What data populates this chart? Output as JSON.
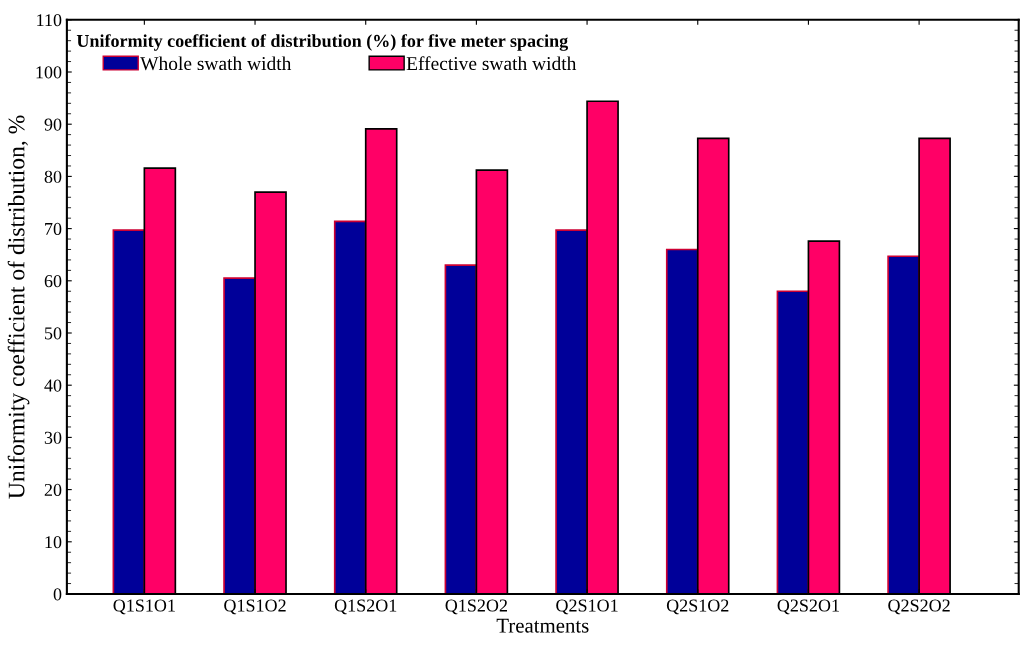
{
  "chart_data": {
    "type": "bar",
    "title": "Uniformity coefficient of distribution (%) for five meter spacing",
    "xlabel": "Treatments",
    "ylabel": "Uniformity coefficient of distribution, %",
    "categories": [
      "Q1S1O1",
      "Q1S1O2",
      "Q1S2O1",
      "Q1S2O2",
      "Q2S1O1",
      "Q2S1O2",
      "Q2S2O1",
      "Q2S2O2"
    ],
    "series": [
      {
        "name": "Whole swath width",
        "color": "#000099",
        "values": [
          69.7,
          60.5,
          71.4,
          63.0,
          69.7,
          66.0,
          58.0,
          64.7
        ]
      },
      {
        "name": "Effective swath width",
        "color": "#ff0066",
        "values": [
          81.6,
          77.0,
          89.1,
          81.2,
          94.4,
          87.3,
          67.6,
          87.3
        ]
      }
    ],
    "ylim": [
      0,
      110
    ],
    "yticks": [
      0,
      10,
      20,
      30,
      40,
      50,
      60,
      70,
      80,
      90,
      100,
      110
    ],
    "grid": false,
    "legend": "top left"
  }
}
